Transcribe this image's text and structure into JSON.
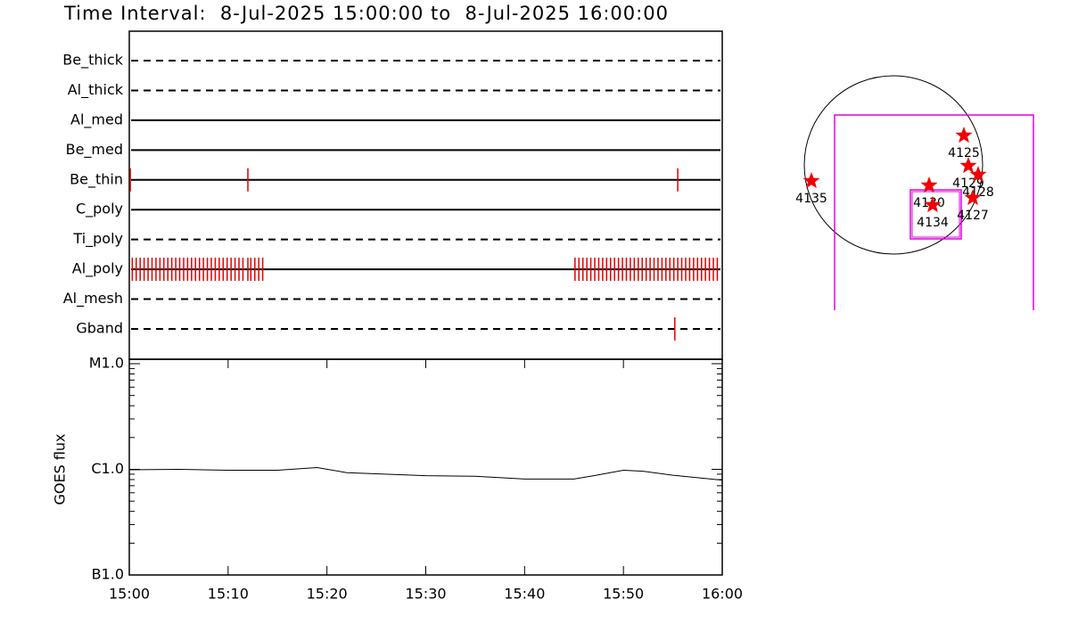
{
  "chart_data": [
    {
      "type": "event",
      "title": "Time Interval:  8-Jul-2025 15:00:00 to  8-Jul-2025 16:00:00",
      "xlim": [
        0,
        60
      ],
      "color": "#e00000",
      "rows": [
        {
          "name": "Be_thick",
          "style": "dashed",
          "times": []
        },
        {
          "name": "Al_thick",
          "style": "dashed",
          "times": []
        },
        {
          "name": "Al_med",
          "style": "solid",
          "times": []
        },
        {
          "name": "Be_med",
          "style": "solid",
          "times": []
        },
        {
          "name": "Be_thin",
          "style": "solid",
          "times": [
            0.1,
            12.0,
            55.5
          ]
        },
        {
          "name": "C_poly",
          "style": "solid",
          "times": []
        },
        {
          "name": "Ti_poly",
          "style": "dashed",
          "times": []
        },
        {
          "name": "Al_poly",
          "style": "solid",
          "times": [
            0.3,
            0.7,
            1.1,
            1.5,
            1.9,
            2.3,
            2.7,
            3.1,
            3.5,
            3.9,
            4.3,
            4.7,
            5.1,
            5.5,
            5.9,
            6.3,
            6.7,
            7.1,
            7.5,
            7.9,
            8.3,
            8.7,
            9.1,
            9.5,
            9.9,
            10.3,
            10.7,
            11.1,
            11.5,
            12.0,
            12.3,
            12.7,
            13.1,
            13.5,
            45.1,
            45.5,
            45.9,
            46.3,
            46.7,
            47.1,
            47.5,
            47.9,
            48.3,
            48.7,
            49.1,
            49.5,
            49.9,
            50.3,
            50.7,
            51.1,
            51.5,
            51.9,
            52.3,
            52.7,
            53.1,
            53.5,
            53.9,
            54.3,
            54.7,
            55.1,
            55.5,
            55.9,
            56.3,
            56.7,
            57.1,
            57.5,
            57.9,
            58.3,
            58.7,
            59.1,
            59.5
          ]
        },
        {
          "name": "Al_mesh",
          "style": "dashed",
          "times": []
        },
        {
          "name": "Gband",
          "style": "dashed",
          "times": [
            55.2
          ]
        }
      ]
    },
    {
      "type": "line",
      "ylabel": "GOES flux",
      "log": true,
      "color": "#000000",
      "x": [
        0,
        5,
        10,
        15,
        19,
        22,
        30,
        35,
        40,
        45,
        47,
        50,
        52,
        55,
        60
      ],
      "values": [
        9.9e-07,
        1e-06,
        9.8e-07,
        9.8e-07,
        1.04e-06,
        9.3e-07,
        8.7e-07,
        8.6e-07,
        8.1e-07,
        8.1e-07,
        8.7e-07,
        9.8e-07,
        9.6e-07,
        8.8e-07,
        7.9e-07
      ],
      "xlim": [
        0,
        60
      ],
      "xticks": [
        {
          "value": 0,
          "label": "15:00"
        },
        {
          "value": 10,
          "label": "15:10"
        },
        {
          "value": 20,
          "label": "15:20"
        },
        {
          "value": 30,
          "label": "15:30"
        },
        {
          "value": 40,
          "label": "15:40"
        },
        {
          "value": 50,
          "label": "15:50"
        },
        {
          "value": 60,
          "label": "16:00"
        }
      ],
      "ylim": [
        1e-07,
        1e-05
      ],
      "yticks": [
        {
          "value": 1e-07,
          "label": "B1.0"
        },
        {
          "value": 1e-06,
          "label": "C1.0"
        },
        {
          "value": 1e-05,
          "label": "M1.0"
        }
      ]
    }
  ],
  "map": {
    "regions": [
      "4125",
      "4129",
      "4128",
      "4127",
      "4130",
      "4134",
      "4135"
    ]
  }
}
